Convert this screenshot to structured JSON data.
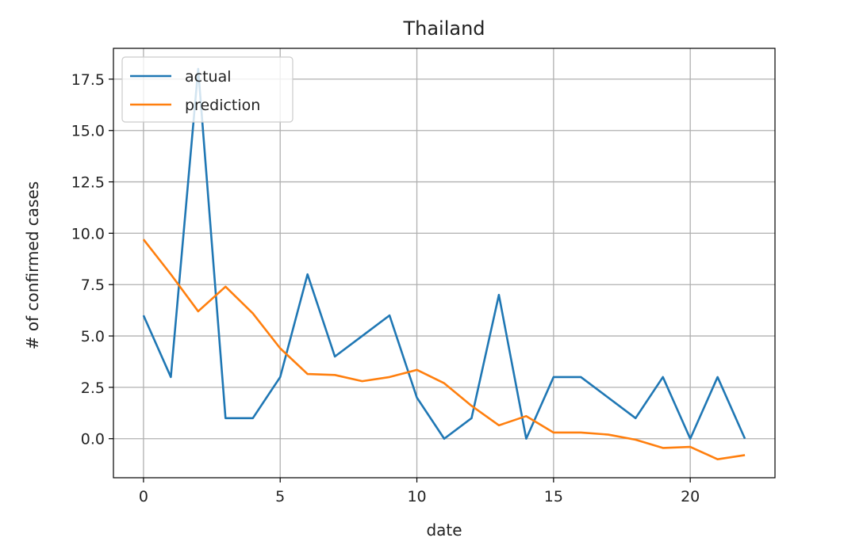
{
  "chart_data": {
    "type": "line",
    "title": "Thailand",
    "xlabel": "date",
    "ylabel": "# of confirmed cases",
    "x": [
      0,
      1,
      2,
      3,
      4,
      5,
      6,
      7,
      8,
      9,
      10,
      11,
      12,
      13,
      14,
      15,
      16,
      17,
      18,
      19,
      20,
      21,
      22
    ],
    "series": [
      {
        "name": "actual",
        "color": "#1f77b4",
        "values": [
          6,
          3,
          18,
          1,
          1,
          3,
          8,
          4,
          5,
          6,
          2,
          0,
          1,
          7,
          0,
          3,
          3,
          2,
          1,
          3,
          0,
          3,
          0
        ]
      },
      {
        "name": "prediction",
        "color": "#ff7f0e",
        "values": [
          9.7,
          8.0,
          6.2,
          7.4,
          6.1,
          4.4,
          3.15,
          3.1,
          2.8,
          3.0,
          3.35,
          2.7,
          1.6,
          0.65,
          1.1,
          0.3,
          0.3,
          0.2,
          -0.05,
          -0.45,
          -0.4,
          -1.0,
          -0.8
        ]
      }
    ],
    "xlim": [
      -1.1,
      23.1
    ],
    "ylim": [
      -1.9,
      19.0
    ],
    "xticks": [
      0,
      5,
      10,
      15,
      20
    ],
    "xtick_labels": [
      "0",
      "5",
      "10",
      "15",
      "20"
    ],
    "yticks": [
      0.0,
      2.5,
      5.0,
      7.5,
      10.0,
      12.5,
      15.0,
      17.5
    ],
    "ytick_labels": [
      "0.0",
      "2.5",
      "5.0",
      "7.5",
      "10.0",
      "12.5",
      "15.0",
      "17.5"
    ],
    "grid": true,
    "legend_position": "top-left",
    "legend": [
      "actual",
      "prediction"
    ]
  }
}
